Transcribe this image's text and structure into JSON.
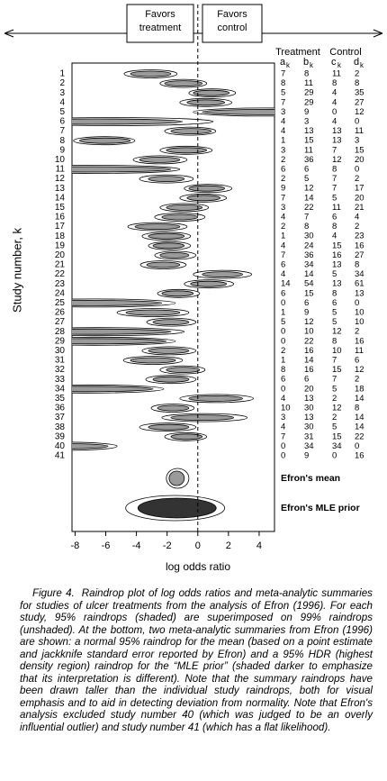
{
  "chart_data": {
    "type": "raindrop",
    "x_label": "log odds ratio",
    "y_label": "Study number, k",
    "favors": [
      [
        "Favors",
        "treatment"
      ],
      [
        "Favors",
        "control"
      ]
    ],
    "categories": [
      1,
      2,
      3,
      4,
      5,
      6,
      7,
      8,
      9,
      10,
      11,
      12,
      13,
      14,
      15,
      16,
      17,
      18,
      19,
      20,
      21,
      22,
      23,
      24,
      25,
      26,
      27,
      28,
      29,
      30,
      31,
      32,
      33,
      34,
      35,
      36,
      37,
      38,
      39,
      40,
      41
    ],
    "ci95": [
      [
        -4.39,
        -1.75
      ],
      [
        -2.16,
        0.29
      ],
      [
        -0.29,
        2.05
      ],
      [
        -0.7,
        1.75
      ],
      [
        0.3,
        9
      ],
      [
        -12,
        -1.0
      ],
      [
        -1.75,
        0.88
      ],
      [
        -7.7,
        -4.4
      ],
      [
        -2.05,
        0.58
      ],
      [
        -3.8,
        -1.17
      ],
      [
        -12,
        -1.75
      ],
      [
        -3.22,
        -0.88
      ],
      [
        -0.58,
        1.75
      ],
      [
        -0.7,
        1.46
      ],
      [
        -2.05,
        0.29
      ],
      [
        -2.34,
        0
      ],
      [
        -4.09,
        -1.17
      ],
      [
        -3.22,
        -0.88
      ],
      [
        -2.92,
        -0.88
      ],
      [
        -2.46,
        -0.58
      ],
      [
        -3.33,
        -1.17
      ],
      [
        0.29,
        2.92
      ],
      [
        -0.47,
        1.87
      ],
      [
        -2.34,
        -0.29
      ],
      [
        -12,
        -2.34
      ],
      [
        -4.68,
        -1.17
      ],
      [
        -2.92,
        -0.58
      ],
      [
        -12,
        -1.75
      ],
      [
        -12,
        -2.05
      ],
      [
        -3.22,
        -0.58
      ],
      [
        -4.39,
        -1.46
      ],
      [
        -2.05,
        0.12
      ],
      [
        -2.92,
        -0.58
      ],
      [
        -12,
        -2.92
      ],
      [
        -0.58,
        2.92
      ],
      [
        -2.63,
        -0.58
      ],
      [
        -1.75,
        2.34
      ],
      [
        -3.22,
        -0.58
      ],
      [
        -1.75,
        0.29
      ],
      [
        -12,
        -5.85
      ],
      null
    ],
    "ci99": [
      [
        -4.8,
        -1.35
      ],
      [
        -2.46,
        0.58
      ],
      [
        -0.58,
        2.46
      ],
      [
        -1.17,
        2.22
      ],
      [
        -0.3,
        9
      ],
      [
        -12,
        1.0
      ],
      [
        -2.16,
        1.17
      ],
      [
        -8.1,
        -4.1
      ],
      [
        -2.46,
        0.94
      ],
      [
        -4.21,
        -0.7
      ],
      [
        -12,
        -1.17
      ],
      [
        -3.8,
        -0.29
      ],
      [
        -0.88,
        2.22
      ],
      [
        -1.17,
        1.87
      ],
      [
        -2.46,
        0.7
      ],
      [
        -2.81,
        0.47
      ],
      [
        -4.56,
        -0.7
      ],
      [
        -3.63,
        -0.47
      ],
      [
        -3.22,
        -0.47
      ],
      [
        -2.81,
        -0.12
      ],
      [
        -3.74,
        -0.76
      ],
      [
        -0.29,
        3.51
      ],
      [
        -0.88,
        2.34
      ],
      [
        -2.63,
        0.12
      ],
      [
        -12,
        -1.46
      ],
      [
        -5.26,
        -0.58
      ],
      [
        -3.33,
        -0.12
      ],
      [
        -12,
        -0.88
      ],
      [
        -12,
        -1.46
      ],
      [
        -3.63,
        -0.12
      ],
      [
        -4.85,
        -0.99
      ],
      [
        -2.46,
        0.47
      ],
      [
        -3.39,
        -0.12
      ],
      [
        -12,
        -2.22
      ],
      [
        -1.17,
        3.63
      ],
      [
        -3.04,
        -0.23
      ],
      [
        -2.34,
        3.22
      ],
      [
        -3.8,
        -0.12
      ],
      [
        -2.16,
        0.58
      ],
      [
        -12,
        -5.26
      ],
      null
    ],
    "fill95": "#9a9a9a",
    "fill99": "#ffffff",
    "summaries": [
      {
        "name": "Efron's mean",
        "ci95": [
          -1.87,
          -0.88
        ],
        "ci99": [
          -2.05,
          -0.58
        ],
        "color": "#9a9a9a"
      },
      {
        "name": "Efron's MLE prior",
        "ci95": [
          -3.9,
          1.2
        ],
        "ci99": [
          -4.7,
          1.75
        ],
        "color": "#333333"
      }
    ],
    "xlim": [
      -8.2,
      5
    ],
    "xticks": [
      -8,
      -6,
      -4,
      -2,
      0,
      2,
      4
    ]
  },
  "table": {
    "groups": [
      "Treatment",
      "Control"
    ],
    "columns": [
      {
        "letter": "a",
        "sub": "k"
      },
      {
        "letter": "b",
        "sub": "k"
      },
      {
        "letter": "c",
        "sub": "k"
      },
      {
        "letter": "d",
        "sub": "k"
      }
    ],
    "rows": [
      [
        7,
        8,
        11,
        2
      ],
      [
        8,
        11,
        8,
        8
      ],
      [
        5,
        29,
        4,
        35
      ],
      [
        7,
        29,
        4,
        27
      ],
      [
        3,
        9,
        0,
        12
      ],
      [
        4,
        3,
        4,
        0
      ],
      [
        4,
        13,
        13,
        11
      ],
      [
        1,
        15,
        13,
        3
      ],
      [
        3,
        11,
        7,
        15
      ],
      [
        2,
        36,
        12,
        20
      ],
      [
        6,
        6,
        8,
        0
      ],
      [
        2,
        5,
        7,
        2
      ],
      [
        9,
        12,
        7,
        17
      ],
      [
        7,
        14,
        5,
        20
      ],
      [
        3,
        22,
        11,
        21
      ],
      [
        4,
        7,
        6,
        4
      ],
      [
        2,
        8,
        8,
        2
      ],
      [
        1,
        30,
        4,
        23
      ],
      [
        4,
        24,
        15,
        16
      ],
      [
        7,
        36,
        16,
        27
      ],
      [
        6,
        34,
        13,
        8
      ],
      [
        4,
        14,
        5,
        34
      ],
      [
        14,
        54,
        13,
        61
      ],
      [
        6,
        15,
        8,
        13
      ],
      [
        0,
        6,
        6,
        0
      ],
      [
        1,
        9,
        5,
        10
      ],
      [
        5,
        12,
        5,
        10
      ],
      [
        0,
        10,
        12,
        2
      ],
      [
        0,
        22,
        8,
        16
      ],
      [
        2,
        16,
        10,
        11
      ],
      [
        1,
        14,
        7,
        6
      ],
      [
        8,
        16,
        15,
        12
      ],
      [
        6,
        6,
        7,
        2
      ],
      [
        0,
        20,
        5,
        18
      ],
      [
        4,
        13,
        2,
        14
      ],
      [
        10,
        30,
        12,
        8
      ],
      [
        3,
        13,
        2,
        14
      ],
      [
        4,
        30,
        5,
        14
      ],
      [
        7,
        31,
        15,
        22
      ],
      [
        0,
        34,
        34,
        0
      ],
      [
        0,
        9,
        0,
        16
      ]
    ]
  },
  "caption": {
    "label": "Figure 4.",
    "text": "Raindrop plot of log odds ratios and meta-analytic summaries for studies of ulcer treatments from the analysis of Efron (1996). For each study, 95% raindrops (shaded) are superimposed on 99% raindrops (unshaded). At the bottom, two meta-analytic summaries from Efron (1996) are shown: a normal 95% raindrop for the mean (based on a point estimate and jackknife standard error reported by Efron) and a 95% HDR (highest density region) raindrop for the “MLE prior” (shaded darker to emphasize that its interpretation is different). Note that the summary raindrops have been drawn taller than the individual study raindrops, both for visual emphasis and to aid in detecting deviation from normality. Note that Efron's analysis excluded study number 40 (which was judged to be an overly influential outlier) and study number 41 (which has a flat likelihood)."
  }
}
